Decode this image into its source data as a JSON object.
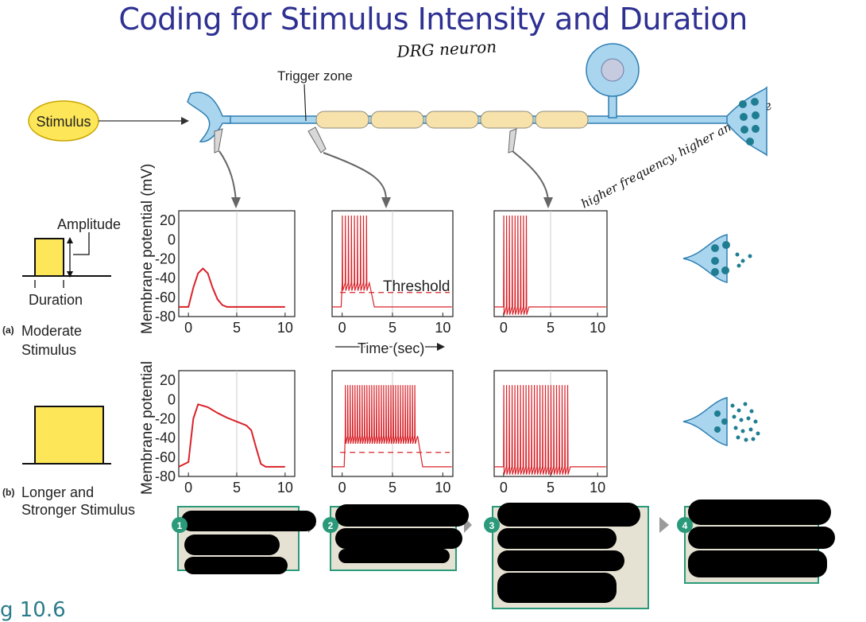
{
  "title": "Coding for Stimulus Intensity and Duration",
  "handwritten_note_1": "DRG neuron",
  "handwritten_note_2": "higher frequency, higher amplitude",
  "labels": {
    "trigger_zone": "Trigger zone",
    "stimulus": "Stimulus",
    "amplitude": "Amplitude",
    "duration": "Duration",
    "row_a_letter": "(a)",
    "row_a": [
      "Moderate",
      "Stimulus"
    ],
    "row_b_letter": "(b)",
    "row_b": [
      "Longer and",
      "Stronger Stimulus"
    ],
    "threshold": "Threshold",
    "time_axis": "Time (sec)",
    "ylabel_a": "Membrane potential (mV)",
    "ylabel_b": "Membrane potential"
  },
  "steps": [
    "1",
    "2",
    "3",
    "4"
  ],
  "figure_label": "g 10.6",
  "colors": {
    "title": "#2e3192",
    "neuron": "#a9d5ee",
    "neuron_stroke": "#2f7fb3",
    "trace": "#d9232a",
    "stimulus": "#fde658",
    "step_box": "#e6e2d3",
    "step_border": "#2a9a7a"
  },
  "chart_data": [
    {
      "type": "line",
      "row": "a",
      "panel": "receptor potential",
      "x": [
        -1,
        0,
        0.5,
        1,
        1.5,
        2,
        2.5,
        3,
        3.5,
        4,
        5,
        6,
        10
      ],
      "y": [
        -70,
        -70,
        -50,
        -35,
        -30,
        -35,
        -50,
        -62,
        -68,
        -70,
        -70,
        -70,
        -70
      ],
      "xlim": [
        -1,
        11
      ],
      "ylim": [
        -80,
        30
      ],
      "xticks": [
        0,
        5,
        10
      ],
      "yticks": [
        20,
        0,
        -20,
        -40,
        -60,
        -80
      ]
    },
    {
      "type": "line",
      "row": "a",
      "panel": "trigger zone",
      "threshold": -55,
      "spike_times": [
        0,
        0.3,
        0.6,
        0.9,
        1.2,
        1.5,
        1.8,
        2.1,
        2.4
      ],
      "baseline": -45,
      "xlim": [
        -1,
        11
      ],
      "ylim": [
        -80,
        30
      ],
      "xticks": [
        0,
        5,
        10
      ]
    },
    {
      "type": "line",
      "row": "a",
      "panel": "axon",
      "spike_times": [
        0,
        0.3,
        0.6,
        0.9,
        1.2,
        1.5,
        1.8,
        2.1,
        2.4
      ],
      "baseline": -70,
      "xlim": [
        -1,
        11
      ],
      "ylim": [
        -80,
        30
      ],
      "xticks": [
        0,
        5,
        10
      ]
    },
    {
      "type": "line",
      "row": "b",
      "panel": "receptor potential",
      "x": [
        -1,
        0,
        0.5,
        1,
        2,
        3,
        4,
        5,
        6,
        6.5,
        7,
        7.5,
        8,
        10
      ],
      "y": [
        -70,
        -65,
        -20,
        -5,
        -8,
        -14,
        -19,
        -23,
        -27,
        -32,
        -50,
        -67,
        -70,
        -70
      ],
      "xlim": [
        -1,
        11
      ],
      "ylim": [
        -80,
        30
      ],
      "xticks": [
        0,
        5,
        10
      ],
      "yticks": [
        20,
        0,
        -20,
        -40,
        -60,
        -80
      ]
    },
    {
      "type": "line",
      "row": "b",
      "panel": "trigger zone",
      "threshold": -55,
      "spike_start": 0.3,
      "spike_end": 7.2,
      "spike_count": 30,
      "baseline": -38,
      "xlim": [
        -1,
        11
      ],
      "ylim": [
        -80,
        30
      ],
      "xticks": [
        0,
        5,
        10
      ]
    },
    {
      "type": "line",
      "row": "b",
      "panel": "axon",
      "spike_start": 0,
      "spike_end": 6.8,
      "spike_count": 24,
      "baseline": -70,
      "xlim": [
        -1,
        11
      ],
      "ylim": [
        -80,
        30
      ],
      "xticks": [
        0,
        5,
        10
      ]
    }
  ]
}
